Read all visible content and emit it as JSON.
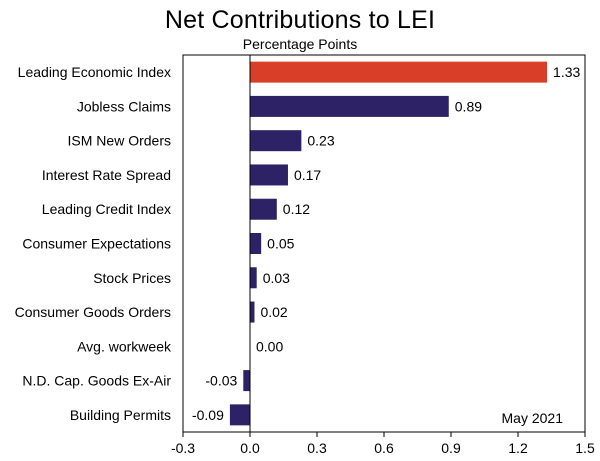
{
  "chart_data": {
    "type": "bar",
    "orientation": "horizontal",
    "title": "Net Contributions to LEI",
    "subtitle": "Percentage Points",
    "categories": [
      "Leading Economic Index",
      "Jobless Claims",
      "ISM New Orders",
      "Interest Rate Spread",
      "Leading Credit Index",
      "Consumer Expectations",
      "Stock Prices",
      "Consumer Goods Orders",
      "Avg. workweek",
      "N.D. Cap. Goods Ex-Air",
      "Building Permits"
    ],
    "values": [
      1.33,
      0.89,
      0.23,
      0.17,
      0.12,
      0.05,
      0.03,
      0.02,
      0.0,
      -0.03,
      -0.09
    ],
    "value_labels": [
      "1.33",
      "0.89",
      "0.23",
      "0.17",
      "0.12",
      "0.05",
      "0.03",
      "0.02",
      "0.00",
      "-0.03",
      "-0.09"
    ],
    "highlight_index": 0,
    "xlim": [
      -0.3,
      1.5
    ],
    "xticks": [
      -0.3,
      0.0,
      0.3,
      0.6,
      0.9,
      1.2,
      1.5
    ],
    "xtick_labels": [
      "-0.3",
      "0.0",
      "0.3",
      "0.6",
      "0.9",
      "1.2",
      "1.5"
    ],
    "xlabel": "",
    "ylabel": "",
    "annotation": "May 2021",
    "grid": false,
    "colors": {
      "highlight": "#d93f28",
      "default": "#2e2266"
    }
  }
}
